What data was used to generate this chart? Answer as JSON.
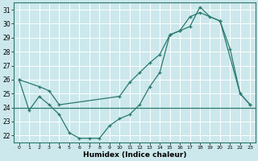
{
  "xlabel": "Humidex (Indice chaleur)",
  "bg_color": "#cce8ec",
  "grid_color": "#ffffff",
  "line_color": "#2a7a6e",
  "hline_y": 24,
  "xlim": [
    -0.5,
    23.5
  ],
  "ylim": [
    21.5,
    31.5
  ],
  "yticks": [
    22,
    23,
    24,
    25,
    26,
    27,
    28,
    29,
    30,
    31
  ],
  "xticks": [
    0,
    1,
    2,
    3,
    4,
    5,
    6,
    7,
    8,
    9,
    10,
    11,
    12,
    13,
    14,
    15,
    16,
    17,
    18,
    19,
    20,
    21,
    22,
    23
  ],
  "series1_x": [
    0,
    1,
    2,
    3,
    4,
    5,
    6,
    7,
    8,
    9,
    10,
    11,
    12,
    13,
    14,
    15,
    16,
    17,
    18,
    19,
    20,
    21,
    22,
    23
  ],
  "series1_y": [
    26.0,
    23.8,
    24.8,
    24.2,
    23.5,
    22.2,
    21.8,
    21.8,
    21.8,
    22.7,
    23.2,
    23.5,
    24.2,
    25.5,
    26.5,
    29.2,
    29.5,
    29.8,
    31.2,
    30.5,
    30.2,
    28.2,
    25.0,
    24.2
  ],
  "series2_x": [
    0,
    2,
    3,
    4,
    10,
    11,
    12,
    13,
    14,
    15,
    16,
    17,
    18,
    20,
    22,
    23
  ],
  "series2_y": [
    26.0,
    25.5,
    25.2,
    24.2,
    24.8,
    25.8,
    26.5,
    27.2,
    27.8,
    29.2,
    29.5,
    30.5,
    30.8,
    30.2,
    25.0,
    24.2
  ]
}
